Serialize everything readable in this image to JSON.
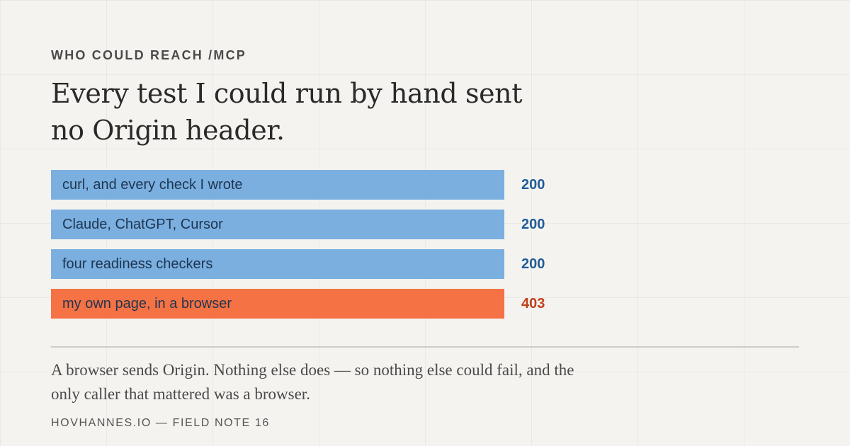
{
  "header": {
    "kicker": "WHO COULD REACH /MCP",
    "headline": "Every test I could run by hand sent no Origin header."
  },
  "chart_data": {
    "type": "bar",
    "orientation": "horizontal",
    "categories": [
      "curl, and every check I wrote",
      "Claude, ChatGPT, Cursor",
      "four readiness checkers",
      "my own page, in a browser"
    ],
    "values": [
      "200",
      "200",
      "200",
      "403"
    ],
    "bar_colors": [
      "#7aafe0",
      "#7aafe0",
      "#7aafe0",
      "#f57244"
    ],
    "value_colors": [
      "#1f5c99",
      "#1f5c99",
      "#1f5c99",
      "#c0401a"
    ]
  },
  "caption": "A browser sends Origin. Nothing else does — so nothing else could fail, and the only caller that mattered was a browser.",
  "footer": "HOVHANNES.IO — FIELD NOTE 16"
}
